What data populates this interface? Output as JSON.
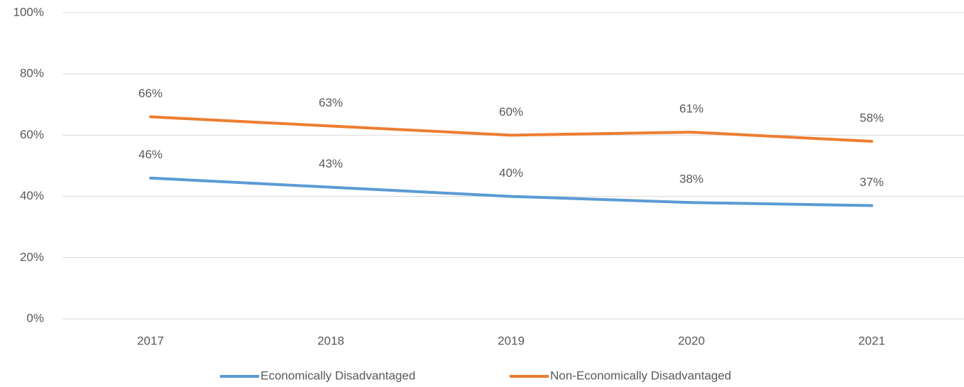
{
  "chart_data": {
    "type": "line",
    "categories": [
      "2017",
      "2018",
      "2019",
      "2020",
      "2021"
    ],
    "series": [
      {
        "name": "Economically Disadvantaged",
        "color": "#5b9bd5",
        "values": [
          46,
          43,
          40,
          38,
          37
        ],
        "value_labels": [
          "46%",
          "43%",
          "40%",
          "38%",
          "37%"
        ]
      },
      {
        "name": "Non-Economically Disadvantaged",
        "color": "#ed7d31",
        "values": [
          66,
          63,
          60,
          61,
          58
        ],
        "value_labels": [
          "66%",
          "63%",
          "60%",
          "61%",
          "58%"
        ]
      }
    ],
    "ylim": [
      0,
      100
    ],
    "yticks": [
      {
        "value": 0,
        "label": "0%"
      },
      {
        "value": 20,
        "label": "20%"
      },
      {
        "value": 40,
        "label": "40%"
      },
      {
        "value": 60,
        "label": "60%"
      },
      {
        "value": 80,
        "label": "80%"
      },
      {
        "value": 100,
        "label": "100%"
      }
    ],
    "grid": true,
    "legend": "bottom"
  }
}
